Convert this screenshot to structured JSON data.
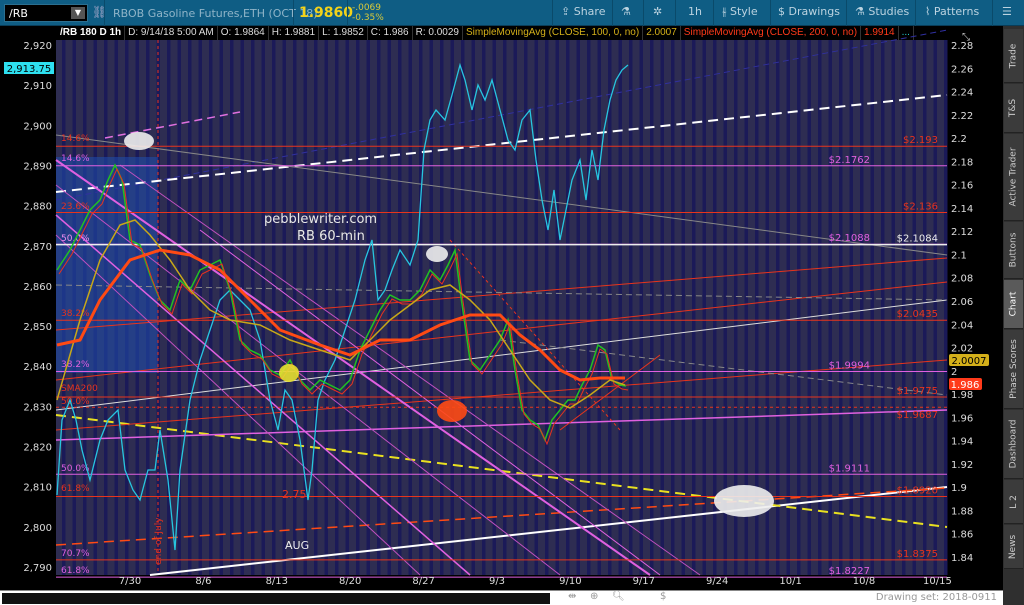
{
  "toolbar": {
    "symbol": "/RB",
    "title": "RBOB Gasoline Futures,ETH (OCT 18)",
    "last": "1.9860",
    "change": "-.0069",
    "change_pct": "-0.35%",
    "buttons": {
      "share": "Share",
      "timeframe": "1h",
      "style": "Style",
      "drawings": "Drawings",
      "studies": "Studies",
      "patterns": "Patterns"
    }
  },
  "header": {
    "symbol": "/RB 180 D 1h",
    "date": "D: 9/14/18 5:00 AM",
    "open": "O: 1.9864",
    "high": "H: 1.9881",
    "low": "L: 1.9852",
    "close": "C: 1.986",
    "range": "R: 0.0029",
    "sma100": "SimpleMovingAvg (CLOSE, 100, 0, no)",
    "sma100_val": "2.0007",
    "sma200": "SimpleMovingAvg (CLOSE, 200, 0, no)",
    "sma200_val": "1.9914",
    "more": "..."
  },
  "left_axis": {
    "ticks": [
      "2,920",
      "2,910",
      "2,900",
      "2,890",
      "2,880",
      "2,870",
      "2,860",
      "2,850",
      "2,840",
      "2,830",
      "2,820",
      "2,810",
      "2,800",
      "2,790"
    ],
    "tag": "2,913.75"
  },
  "right_axis": {
    "ticks": [
      "2.28",
      "2.26",
      "2.24",
      "2.22",
      "2.2",
      "2.18",
      "2.16",
      "2.14",
      "2.12",
      "2.1",
      "2.08",
      "2.06",
      "2.04",
      "2.02",
      "2",
      "1.98",
      "1.96",
      "1.94",
      "1.92",
      "1.9",
      "1.88",
      "1.86",
      "1.84"
    ],
    "tag_sma": "2.0007",
    "tag_last": "1.986"
  },
  "dates": [
    "7/30",
    "8/6",
    "8/13",
    "8/20",
    "8/27",
    "9/3",
    "9/10",
    "9/17",
    "9/24",
    "10/1",
    "10/8",
    "10/15"
  ],
  "levels": [
    {
      "price": 2.193,
      "label": "$2.193",
      "color": "#e8341c"
    },
    {
      "price": 2.1762,
      "label": "$2.1762",
      "color": "#e060e0"
    },
    {
      "price": 2.136,
      "label": "$2.136",
      "color": "#e8341c"
    },
    {
      "price": 2.1088,
      "label": "$2.1088",
      "color": "#e060e0"
    },
    {
      "price": 2.0435,
      "label": "$2.0435",
      "color": "#e8341c"
    },
    {
      "price": 1.9994,
      "label": "$1.9994",
      "color": "#e060e0"
    },
    {
      "price": 1.9775,
      "label": "$1.9775",
      "color": "#e8341c"
    },
    {
      "price": 1.9687,
      "label": "$1.9687",
      "color": "#e8341c"
    },
    {
      "price": 1.9111,
      "label": "$1.9111",
      "color": "#e060e0"
    },
    {
      "price": 1.892,
      "label": "$1.8920",
      "color": "#e8341c"
    },
    {
      "price": 1.8375,
      "label": "$1.8375",
      "color": "#e8341c"
    },
    {
      "price": 1.8227,
      "label": "$1.8227",
      "color": "#e060e0"
    }
  ],
  "level_white": "$2.1084",
  "fib_labels": [
    {
      "label": "14.6%",
      "color": "#e8341c"
    },
    {
      "label": "14.6%",
      "color": "#e060e0"
    },
    {
      "label": "23.6%",
      "color": "#e8341c"
    },
    {
      "label": "50.0%",
      "color": "#f090f0"
    },
    {
      "label": "38.2%",
      "color": "#e8341c"
    },
    {
      "label": "38.2%",
      "color": "#e060e0"
    },
    {
      "label": "SMA200",
      "color": "#e8341c"
    },
    {
      "label": "50.0%",
      "color": "#e8341c"
    },
    {
      "label": "50.0%",
      "color": "#e060e0"
    },
    {
      "label": "61.8%",
      "color": "#e8341c"
    },
    {
      "label": "70.7%",
      "color": "#e060e0"
    },
    {
      "label": "61.8%",
      "color": "#e060e0"
    }
  ],
  "annotations": {
    "site": "pebblewriter.com",
    "chart_name": "RB 60-min",
    "level_275": "2.75",
    "aug": "AUG",
    "end_of_july": "end of July"
  },
  "sidebar": {
    "tabs": [
      "Trade",
      "T&S",
      "Active Trader",
      "Buttons",
      "Chart",
      "Phase Scores",
      "Dashboard",
      "L 2",
      "News"
    ],
    "selected": "Chart"
  },
  "bottom": {
    "drawing_set": "Drawing set: 2018-0911"
  },
  "colors": {
    "toolbar": "#0f5d84",
    "plot_bg": "#2e2d52",
    "stripe": "#1b1a58",
    "cyan": "#27c6e0",
    "sma100": "#c8a818",
    "sma200": "#ff4a14"
  }
}
